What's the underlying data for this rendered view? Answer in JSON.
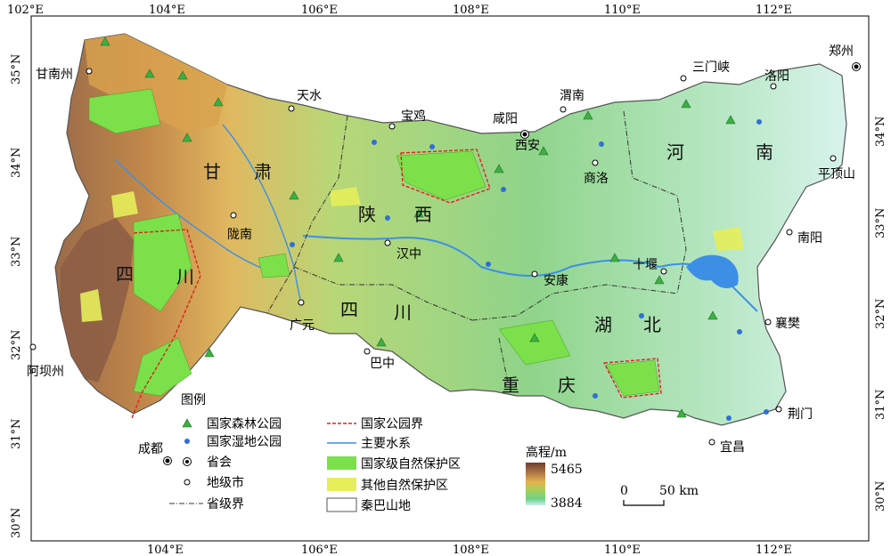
{
  "axes": {
    "top_ticks": [
      "102°E",
      "104°E",
      "106°E",
      "108°E",
      "110°E",
      "112°E"
    ],
    "bottom_ticks": [
      "104°E",
      "106°E",
      "108°E",
      "110°E",
      "112°E"
    ],
    "left_ticks": [
      "35°N",
      "34°N",
      "33°N",
      "32°N",
      "31°N",
      "30°N"
    ],
    "right_ticks": [
      "34°N",
      "33°N",
      "32°N",
      "31°N",
      "30°N"
    ]
  },
  "provinces": [
    "甘",
    "肃",
    "陕",
    "西",
    "河",
    "南",
    "四",
    "川",
    "四",
    "川",
    "湖",
    "北",
    "重",
    "庆"
  ],
  "cities": [
    {
      "name": "甘南州",
      "type": "prefecture"
    },
    {
      "name": "天水",
      "type": "prefecture"
    },
    {
      "name": "宝鸡",
      "type": "prefecture"
    },
    {
      "name": "咸阳",
      "type": "prefecture"
    },
    {
      "name": "西安",
      "type": "capital"
    },
    {
      "name": "渭南",
      "type": "prefecture"
    },
    {
      "name": "三门峡",
      "type": "prefecture"
    },
    {
      "name": "洛阳",
      "type": "prefecture"
    },
    {
      "name": "郑州",
      "type": "capital"
    },
    {
      "name": "商洛",
      "type": "prefecture"
    },
    {
      "name": "平顶山",
      "type": "prefecture"
    },
    {
      "name": "陇南",
      "type": "prefecture"
    },
    {
      "name": "南阳",
      "type": "prefecture"
    },
    {
      "name": "汉中",
      "type": "prefecture"
    },
    {
      "name": "十堰",
      "type": "prefecture"
    },
    {
      "name": "安康",
      "type": "prefecture"
    },
    {
      "name": "广元",
      "type": "prefecture"
    },
    {
      "name": "襄樊",
      "type": "prefecture"
    },
    {
      "name": "巴中",
      "type": "prefecture"
    },
    {
      "name": "阿坝州",
      "type": "prefecture"
    },
    {
      "name": "荆门",
      "type": "prefecture"
    },
    {
      "name": "宜昌",
      "type": "prefecture"
    },
    {
      "name": "成都",
      "type": "capital"
    }
  ],
  "legend": {
    "title": "图例",
    "items": [
      "国家森林公园",
      "国家湿地公园",
      "省会",
      "地级市",
      "省级界",
      "国家公园界",
      "主要水系",
      "国家级自然保护区",
      "其他自然保护区",
      "秦巴山地"
    ]
  },
  "elevation": {
    "title": "高程/m",
    "max": "5465",
    "min": "3884"
  },
  "scale": {
    "zero": "0",
    "label": "50 km"
  },
  "colors": {
    "forest_park": "#3cb043",
    "wetland_park": "#2f6fd6",
    "national_reserve": "#7be04a",
    "other_reserve": "#e6ee5a",
    "water": "#3d8fe6",
    "park_boundary": "#e02020"
  }
}
